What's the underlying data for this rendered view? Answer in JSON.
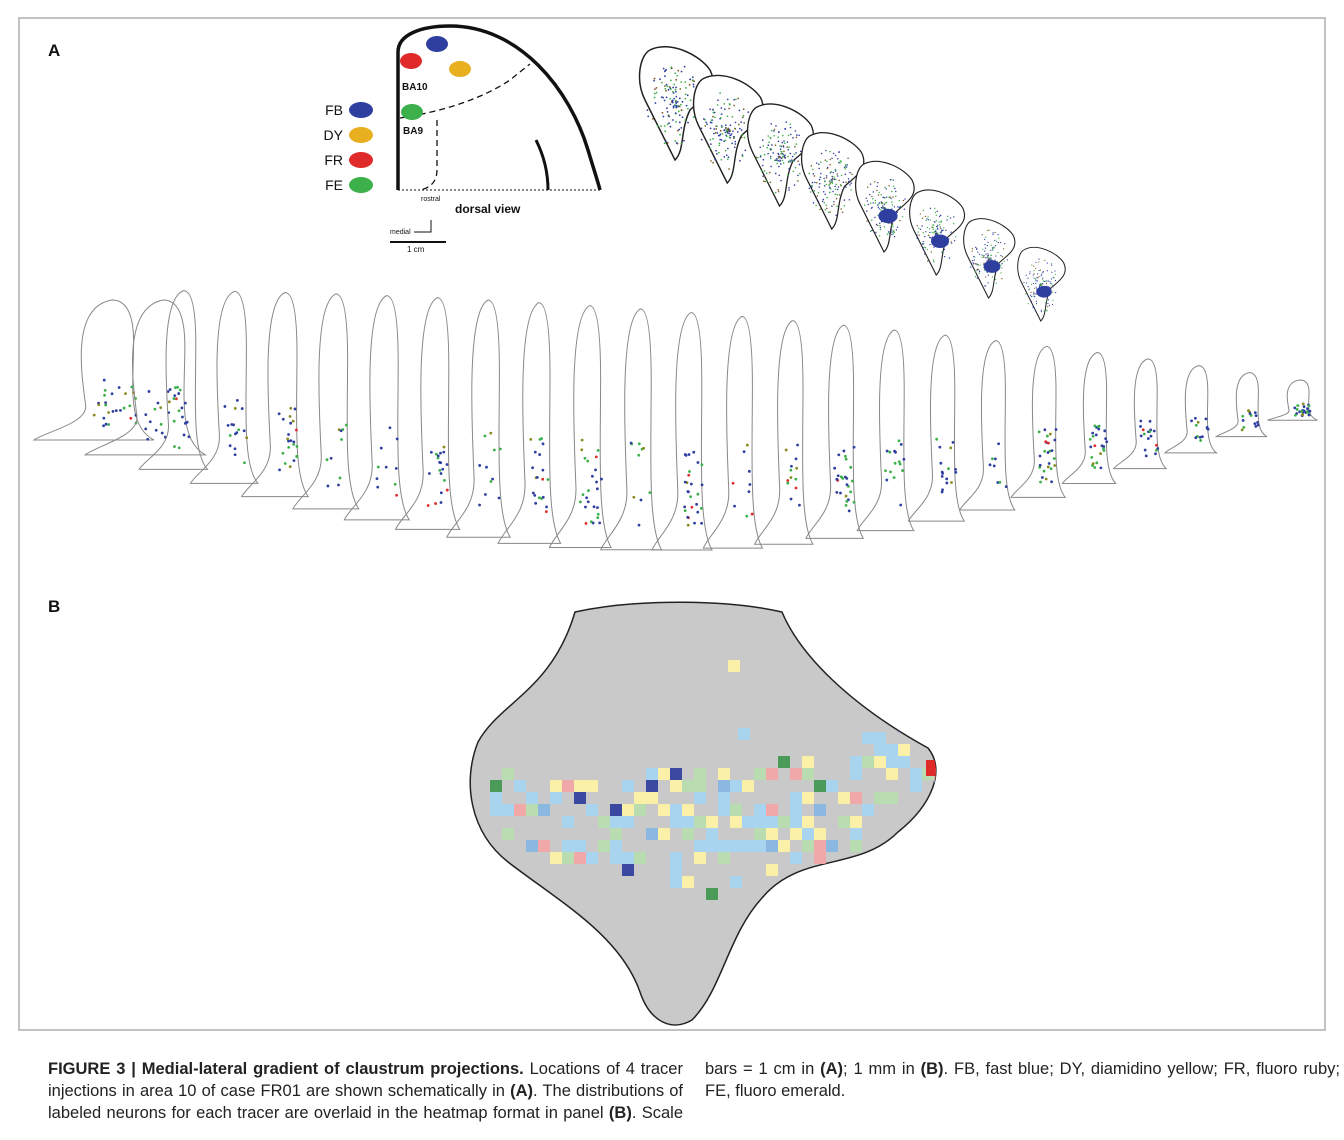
{
  "panel_a": {
    "label": "A",
    "legend": [
      {
        "label": "FB",
        "color": "#2f3fa0"
      },
      {
        "label": "DY",
        "color": "#e8b020"
      },
      {
        "label": "FR",
        "color": "#e02a2a"
      },
      {
        "label": "FE",
        "color": "#3cb04a"
      }
    ],
    "areas": [
      "BA10",
      "BA9"
    ],
    "view": "dorsal view",
    "orient_up": "rostral",
    "orient_left": "medial",
    "scale": "1 cm"
  },
  "panel_b": {
    "label": "B"
  },
  "caption": [
    {
      "text": "FIGURE 3 | Medial-lateral gradient of claustrum projections.",
      "bold": true
    },
    {
      "text": " Locations of 4 tracer injections in area 10 of case FR01 are shown schematically in ",
      "bold": false
    },
    {
      "text": "(A)",
      "bold": true
    },
    {
      "text": ". The distributions of labeled neurons for each tracer are overlaid in the heatmap format in panel ",
      "bold": false
    },
    {
      "text": "(B)",
      "bold": true
    },
    {
      "text": ". Scale bars = 1 cm in ",
      "bold": false
    },
    {
      "text": "(A)",
      "bold": true
    },
    {
      "text": "; 1 mm in ",
      "bold": false
    },
    {
      "text": "(B)",
      "bold": true
    },
    {
      "text": ". FB, fast blue; DY, diamidino yellow; FR, fluoro ruby; FE, fluoro emerald.",
      "bold": false
    }
  ]
}
